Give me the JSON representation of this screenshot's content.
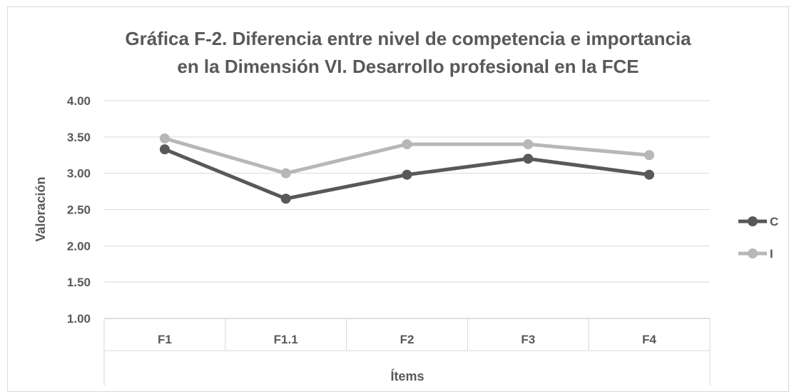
{
  "chart_data": {
    "type": "line",
    "title": "Gráfica F-2. Diferencia entre nivel de competencia e importancia",
    "subtitle": "en la Dimensión VI. Desarrollo profesional en la FCE",
    "xlabel": "Ítems",
    "ylabel": "Valoración",
    "categories": [
      "F1",
      "F1.1",
      "F2",
      "F3",
      "F4"
    ],
    "ylim": [
      1.0,
      4.0
    ],
    "yticks": [
      "1.00",
      "1.50",
      "2.00",
      "2.50",
      "3.00",
      "3.50",
      "4.00"
    ],
    "grid": true,
    "legend_position": "right",
    "series": [
      {
        "name": "C",
        "values": [
          3.33,
          2.65,
          2.98,
          3.2,
          2.98
        ],
        "color": "#595959"
      },
      {
        "name": "I",
        "values": [
          3.48,
          3.0,
          3.4,
          3.4,
          3.25
        ],
        "color": "#b7b7b7"
      }
    ]
  }
}
